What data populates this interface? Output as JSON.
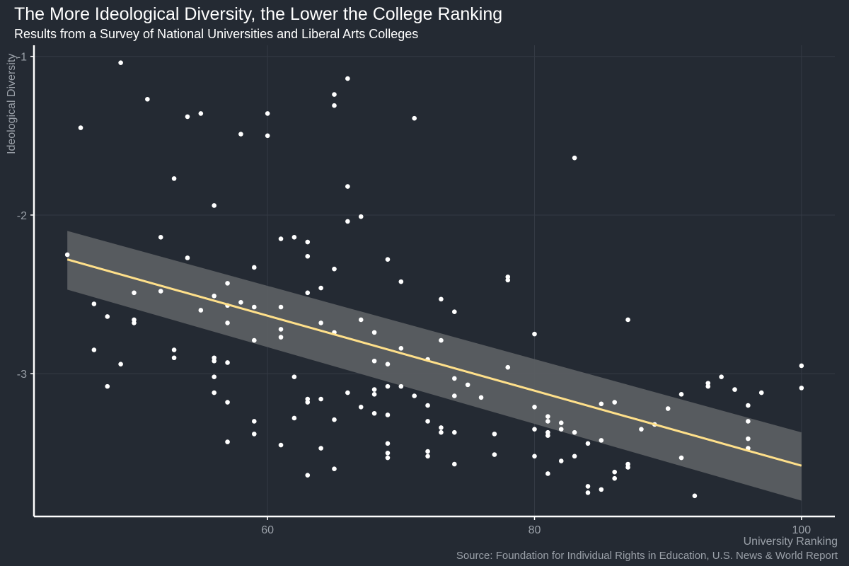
{
  "chart_data": {
    "type": "scatter",
    "title": "The More Ideological Diversity, the Lower the College Ranking",
    "subtitle": "Results from a Survey of National Universities and Liberal Arts Colleges",
    "xlabel": "University Ranking",
    "ylabel": "Ideological Diversity",
    "caption": "Source: Foundation for Individual Rights in Education, U.S. News & World Report",
    "xlim": [
      42.5,
      102.5
    ],
    "ylim": [
      -3.9,
      -0.93
    ],
    "x_ticks": [
      60,
      80,
      100
    ],
    "y_ticks": [
      -1,
      -2,
      -3
    ],
    "grid": true,
    "colors": {
      "background": "#242a33",
      "points": "#ffffff",
      "trend_line": "#ffe08a",
      "confidence_band": "#5b5e62",
      "axis": "#ffffff",
      "grid": "#343a44"
    },
    "trend": {
      "x": [
        45,
        100
      ],
      "y": [
        -2.28,
        -3.58
      ],
      "band_lower": [
        -2.47,
        -3.8
      ],
      "band_upper": [
        -2.1,
        -3.37
      ]
    },
    "points": [
      [
        45,
        -2.25
      ],
      [
        46,
        -1.45
      ],
      [
        47,
        -2.56
      ],
      [
        47,
        -2.85
      ],
      [
        48,
        -2.64
      ],
      [
        48,
        -3.08
      ],
      [
        49,
        -1.04
      ],
      [
        49,
        -2.94
      ],
      [
        50,
        -2.49
      ],
      [
        50,
        -2.66
      ],
      [
        50,
        -2.68
      ],
      [
        51,
        -1.27
      ],
      [
        52,
        -2.14
      ],
      [
        52,
        -2.48
      ],
      [
        53,
        -1.77
      ],
      [
        53,
        -2.85
      ],
      [
        53,
        -2.9
      ],
      [
        54,
        -1.38
      ],
      [
        54,
        -2.27
      ],
      [
        55,
        -1.36
      ],
      [
        55,
        -2.6
      ],
      [
        56,
        -1.94
      ],
      [
        56,
        -2.51
      ],
      [
        56,
        -2.9
      ],
      [
        56,
        -2.92
      ],
      [
        56,
        -3.02
      ],
      [
        56,
        -3.12
      ],
      [
        57,
        -2.43
      ],
      [
        57,
        -2.57
      ],
      [
        57,
        -2.68
      ],
      [
        57,
        -2.93
      ],
      [
        57,
        -3.18
      ],
      [
        57,
        -3.43
      ],
      [
        58,
        -1.49
      ],
      [
        58,
        -2.55
      ],
      [
        59,
        -2.33
      ],
      [
        59,
        -2.58
      ],
      [
        59,
        -2.79
      ],
      [
        59,
        -3.3
      ],
      [
        59,
        -3.38
      ],
      [
        60,
        -1.36
      ],
      [
        60,
        -1.5
      ],
      [
        61,
        -2.15
      ],
      [
        61,
        -2.58
      ],
      [
        61,
        -2.72
      ],
      [
        61,
        -2.77
      ],
      [
        61,
        -3.45
      ],
      [
        62,
        -2.14
      ],
      [
        62,
        -3.02
      ],
      [
        62,
        -3.28
      ],
      [
        63,
        -2.17
      ],
      [
        63,
        -2.26
      ],
      [
        63,
        -2.49
      ],
      [
        63,
        -3.16
      ],
      [
        63,
        -3.18
      ],
      [
        63,
        -3.64
      ],
      [
        64,
        -2.46
      ],
      [
        64,
        -2.68
      ],
      [
        64,
        -3.16
      ],
      [
        64,
        -3.47
      ],
      [
        65,
        -1.24
      ],
      [
        65,
        -1.31
      ],
      [
        65,
        -2.34
      ],
      [
        65,
        -2.74
      ],
      [
        65,
        -3.29
      ],
      [
        65,
        -3.6
      ],
      [
        66,
        -1.14
      ],
      [
        66,
        -1.82
      ],
      [
        66,
        -2.04
      ],
      [
        66,
        -3.12
      ],
      [
        67,
        -2.01
      ],
      [
        67,
        -2.66
      ],
      [
        67,
        -3.21
      ],
      [
        68,
        -2.74
      ],
      [
        68,
        -2.92
      ],
      [
        68,
        -3.1
      ],
      [
        68,
        -3.13
      ],
      [
        68,
        -3.25
      ],
      [
        69,
        -2.28
      ],
      [
        69,
        -2.94
      ],
      [
        69,
        -3.08
      ],
      [
        69,
        -3.26
      ],
      [
        69,
        -3.44
      ],
      [
        69,
        -3.5
      ],
      [
        69,
        -3.53
      ],
      [
        70,
        -2.42
      ],
      [
        70,
        -2.84
      ],
      [
        70,
        -3.08
      ],
      [
        71,
        -1.39
      ],
      [
        71,
        -3.14
      ],
      [
        72,
        -2.91
      ],
      [
        72,
        -3.2
      ],
      [
        72,
        -3.3
      ],
      [
        72,
        -3.49
      ],
      [
        72,
        -3.52
      ],
      [
        73,
        -2.53
      ],
      [
        73,
        -2.79
      ],
      [
        73,
        -3.34
      ],
      [
        73,
        -3.37
      ],
      [
        74,
        -2.61
      ],
      [
        74,
        -3.03
      ],
      [
        74,
        -3.14
      ],
      [
        74,
        -3.37
      ],
      [
        74,
        -3.57
      ],
      [
        75,
        -3.07
      ],
      [
        76,
        -3.15
      ],
      [
        77,
        -3.38
      ],
      [
        77,
        -3.51
      ],
      [
        78,
        -2.39
      ],
      [
        78,
        -2.41
      ],
      [
        78,
        -2.96
      ],
      [
        80,
        -2.75
      ],
      [
        80,
        -3.21
      ],
      [
        80,
        -3.35
      ],
      [
        80,
        -3.52
      ],
      [
        81,
        -3.27
      ],
      [
        81,
        -3.3
      ],
      [
        81,
        -3.37
      ],
      [
        81,
        -3.39
      ],
      [
        81,
        -3.63
      ],
      [
        82,
        -3.31
      ],
      [
        82,
        -3.35
      ],
      [
        82,
        -3.55
      ],
      [
        83,
        -1.64
      ],
      [
        83,
        -3.37
      ],
      [
        83,
        -3.52
      ],
      [
        84,
        -3.44
      ],
      [
        84,
        -3.71
      ],
      [
        84,
        -3.75
      ],
      [
        85,
        -3.19
      ],
      [
        85,
        -3.42
      ],
      [
        85,
        -3.73
      ],
      [
        86,
        -3.18
      ],
      [
        86,
        -3.62
      ],
      [
        86,
        -3.66
      ],
      [
        87,
        -2.66
      ],
      [
        87,
        -3.57
      ],
      [
        87,
        -3.59
      ],
      [
        88,
        -3.35
      ],
      [
        89,
        -3.32
      ],
      [
        90,
        -3.22
      ],
      [
        91,
        -3.13
      ],
      [
        91,
        -3.53
      ],
      [
        92,
        -3.77
      ],
      [
        93,
        -3.06
      ],
      [
        93,
        -3.08
      ],
      [
        94,
        -3.02
      ],
      [
        95,
        -3.1
      ],
      [
        96,
        -3.2
      ],
      [
        96,
        -3.3
      ],
      [
        96,
        -3.41
      ],
      [
        96,
        -3.47
      ],
      [
        97,
        -3.12
      ],
      [
        100,
        -2.95
      ],
      [
        100,
        -3.09
      ]
    ]
  }
}
